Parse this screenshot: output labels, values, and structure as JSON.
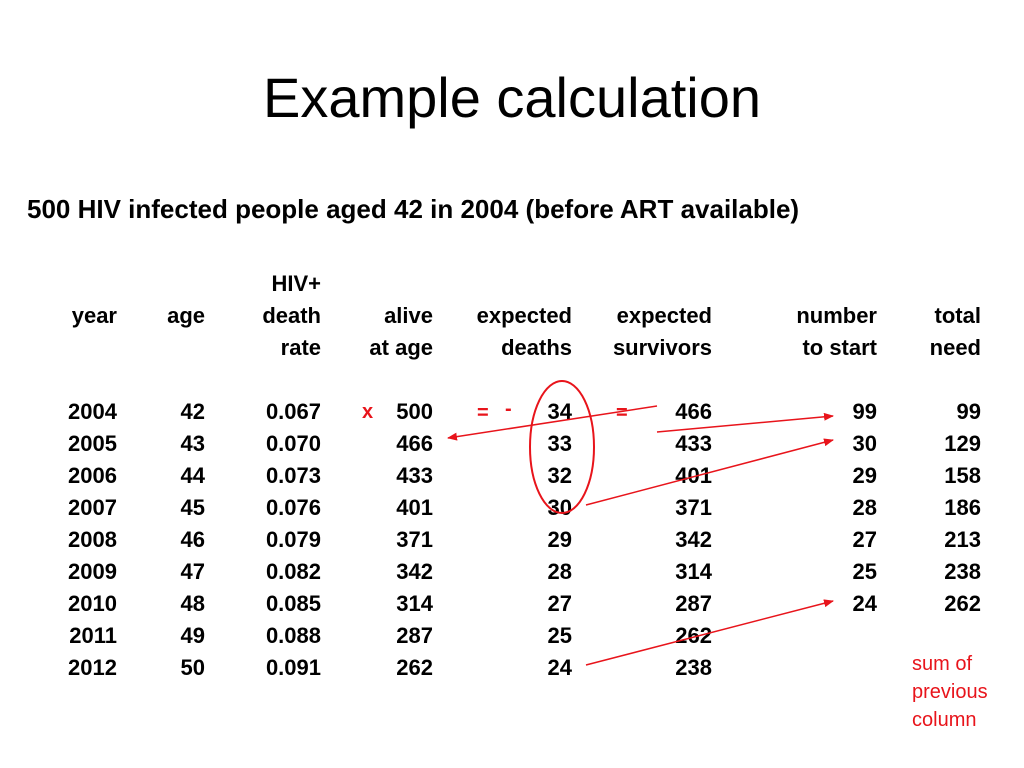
{
  "title": "Example calculation",
  "subtitle": "500 HIV infected people aged 42 in 2004 (before ART available)",
  "table": {
    "headers": [
      [
        "",
        "year",
        ""
      ],
      [
        "",
        "age",
        ""
      ],
      [
        "HIV+",
        "death",
        "rate"
      ],
      [
        "",
        "alive",
        "at age"
      ],
      [
        "",
        "expected",
        "deaths"
      ],
      [
        "",
        "expected",
        "survivors"
      ],
      [
        "",
        "number",
        "to start"
      ],
      [
        "",
        "total",
        "need"
      ]
    ],
    "rows": [
      [
        "2004",
        "42",
        "0.067",
        "500",
        "34",
        "466",
        "99",
        "99"
      ],
      [
        "2005",
        "43",
        "0.070",
        "466",
        "33",
        "433",
        "30",
        "129"
      ],
      [
        "2006",
        "44",
        "0.073",
        "433",
        "32",
        "401",
        "29",
        "158"
      ],
      [
        "2007",
        "45",
        "0.076",
        "401",
        "30",
        "371",
        "28",
        "186"
      ],
      [
        "2008",
        "46",
        "0.079",
        "371",
        "29",
        "342",
        "27",
        "213"
      ],
      [
        "2009",
        "47",
        "0.082",
        "342",
        "28",
        "314",
        "25",
        "238"
      ],
      [
        "2010",
        "48",
        "0.085",
        "314",
        "27",
        "287",
        "24",
        "262"
      ],
      [
        "2011",
        "49",
        "0.088",
        "287",
        "25",
        "262",
        "",
        ""
      ],
      [
        "2012",
        "50",
        "0.091",
        "262",
        "24",
        "238",
        "",
        ""
      ]
    ]
  },
  "operators": {
    "multiply": "x",
    "equals_1": "=",
    "minus": "-",
    "equals_2": "="
  },
  "annotation": [
    "sum of",
    "previous",
    "column"
  ],
  "colors": {
    "annotation": "#e8141b",
    "text": "#000000",
    "background": "#ffffff"
  }
}
